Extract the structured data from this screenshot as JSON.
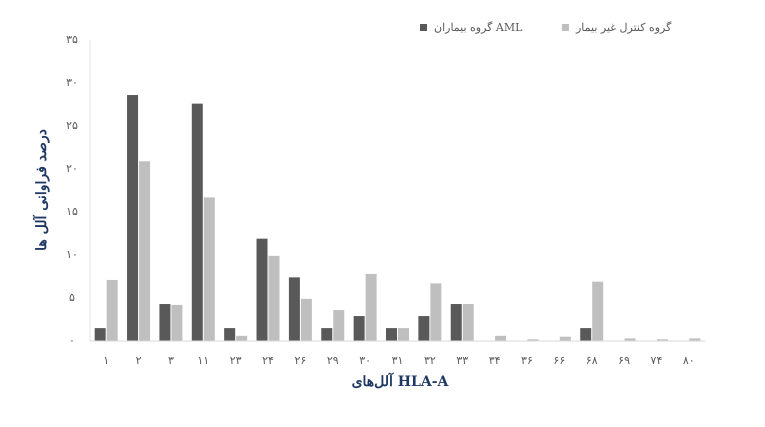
{
  "chart_data": {
    "type": "bar",
    "x_label": "آلل‌های HLA-A",
    "y_label": "درصد فراوانی آلل ها",
    "categories": [
      "۱",
      "۲",
      "۳",
      "۱۱",
      "۲۳",
      "۲۴",
      "۲۶",
      "۲۹",
      "۳۰",
      "۳۱",
      "۳۲",
      "۳۳",
      "۳۴",
      "۳۶",
      "۶۶",
      "۶۸",
      "۶۹",
      "۷۴",
      "۸۰"
    ],
    "series": [
      {
        "name": "گروه بیماران AML",
        "color": "#595959",
        "values": [
          1.5,
          28.6,
          4.3,
          27.6,
          1.5,
          11.9,
          7.4,
          1.5,
          2.9,
          1.5,
          2.9,
          4.3,
          0,
          0,
          0,
          1.5,
          0,
          0,
          0
        ]
      },
      {
        "name": "گروه کنترل غیر بیمار",
        "color": "#bfbfbf",
        "values": [
          7.1,
          20.9,
          4.2,
          16.7,
          0.6,
          9.9,
          4.9,
          3.6,
          7.8,
          1.5,
          6.7,
          4.3,
          0.6,
          0.2,
          0.5,
          6.9,
          0.3,
          0.2,
          0.3
        ]
      }
    ],
    "ylim": [
      0,
      35
    ],
    "yticks": [
      {
        "value": 0,
        "label": "۰"
      },
      {
        "value": 5,
        "label": "۵"
      },
      {
        "value": 10,
        "label": "۱۰"
      },
      {
        "value": 15,
        "label": "۱۵"
      },
      {
        "value": 20,
        "label": "۲۰"
      },
      {
        "value": 25,
        "label": "۲۵"
      },
      {
        "value": 30,
        "label": "۳۰"
      },
      {
        "value": 35,
        "label": "۳۵"
      }
    ],
    "grid": false
  }
}
